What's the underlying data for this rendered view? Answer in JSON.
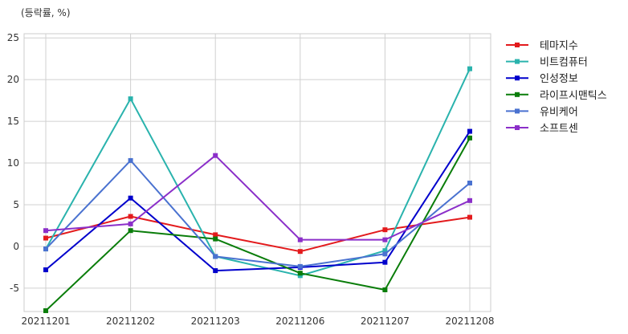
{
  "chart_data": {
    "type": "line",
    "unit_label": "(등락률, %)",
    "categories": [
      "20211201",
      "20211202",
      "20211203",
      "20211206",
      "20211207",
      "20211208"
    ],
    "ylim": [
      -7.8,
      25.5
    ],
    "yticks": [
      -5,
      0,
      5,
      10,
      15,
      20,
      25
    ],
    "grid": true,
    "legend_position": "right",
    "series": [
      {
        "name": "테마지수",
        "color": "#e31a1c",
        "values": [
          1.0,
          3.6,
          1.4,
          -0.6,
          2.0,
          3.5
        ]
      },
      {
        "name": "비트컴퓨터",
        "color": "#2ab3ad",
        "values": [
          -0.3,
          17.7,
          -1.2,
          -3.5,
          -0.5,
          21.3
        ]
      },
      {
        "name": "인성정보",
        "color": "#0000cc",
        "values": [
          -2.8,
          5.8,
          -2.9,
          -2.5,
          -1.9,
          13.8
        ]
      },
      {
        "name": "라이프시맨틱스",
        "color": "#0a7d0a",
        "values": [
          -7.7,
          1.9,
          0.9,
          -3.2,
          -5.2,
          13.0
        ]
      },
      {
        "name": "유비케어",
        "color": "#4a72d0",
        "values": [
          -0.3,
          10.3,
          -1.2,
          -2.4,
          -0.9,
          7.6
        ]
      },
      {
        "name": "소프트센",
        "color": "#8b2fc9",
        "values": [
          1.9,
          2.7,
          10.9,
          0.8,
          0.8,
          5.5
        ]
      }
    ]
  }
}
